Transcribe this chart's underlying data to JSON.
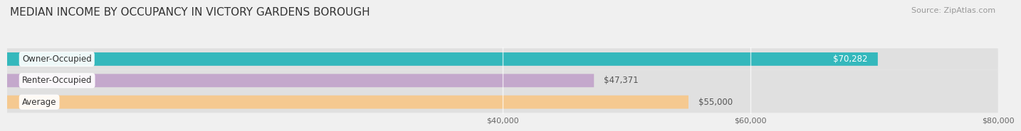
{
  "title": "MEDIAN INCOME BY OCCUPANCY IN VICTORY GARDENS BOROUGH",
  "source": "Source: ZipAtlas.com",
  "categories": [
    "Owner-Occupied",
    "Renter-Occupied",
    "Average"
  ],
  "values": [
    70282,
    47371,
    55000
  ],
  "bar_colors": [
    "#34b8bc",
    "#c4a8cc",
    "#f5c990"
  ],
  "bar_labels": [
    "$70,282",
    "$47,371",
    "$55,000"
  ],
  "label_inside": [
    true,
    false,
    false
  ],
  "label_colors_inside": [
    "#ffffff",
    "#555555",
    "#555555"
  ],
  "xlim": [
    0,
    80000
  ],
  "xticks": [
    40000,
    60000,
    80000
  ],
  "xticklabels": [
    "$40,000",
    "$60,000",
    "$80,000"
  ],
  "background_color": "#f0f0f0",
  "bar_bg_color": "#e0e0e0",
  "title_fontsize": 11,
  "source_fontsize": 8,
  "label_fontsize": 8.5,
  "category_fontsize": 8.5
}
